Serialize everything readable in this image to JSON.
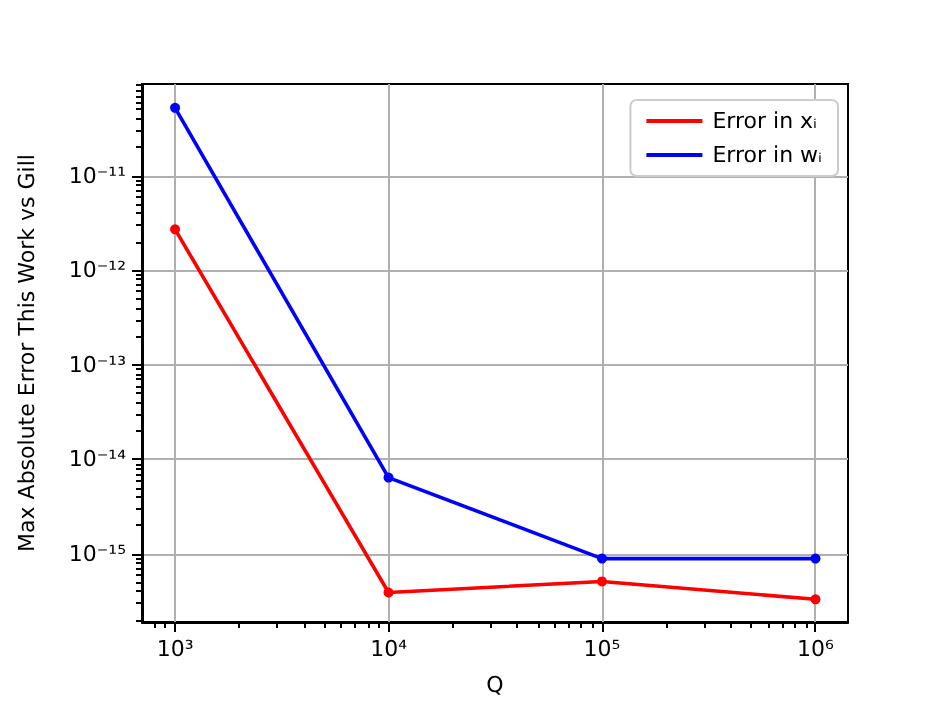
{
  "chart_data": {
    "type": "line",
    "xlabel": "Q",
    "ylabel": "Max Absolute Error This Work vs Gill",
    "x": [
      1000,
      10000,
      100000,
      1000000
    ],
    "series": [
      {
        "name": "Error in xᵢ",
        "color": "#ff0000",
        "values": [
          2.7e-12,
          3.9e-16,
          5.1e-16,
          3.3e-16
        ]
      },
      {
        "name": "Error in wᵢ",
        "color": "#0000ff",
        "values": [
          5.2e-11,
          6.4e-15,
          8.9e-16,
          8.9e-16
        ]
      }
    ],
    "log": "xy",
    "xlim": [
      700,
      1420000
    ],
    "ylim": [
      1.9e-16,
      9.3e-11
    ],
    "xticks": [
      {
        "value": 1000,
        "label": "10³"
      },
      {
        "value": 10000,
        "label": "10⁴"
      },
      {
        "value": 100000,
        "label": "10⁵"
      },
      {
        "value": 1000000,
        "label": "10⁶"
      }
    ],
    "yticks": [
      {
        "value": 1e-15,
        "label": "10⁻¹⁵"
      },
      {
        "value": 1e-14,
        "label": "10⁻¹⁴"
      },
      {
        "value": 1e-13,
        "label": "10⁻¹³"
      },
      {
        "value": 1e-12,
        "label": "10⁻¹²"
      },
      {
        "value": 1e-11,
        "label": "10⁻¹¹"
      }
    ],
    "grid": true,
    "legend": "top right",
    "marker": "circle",
    "line_style": "solid"
  }
}
